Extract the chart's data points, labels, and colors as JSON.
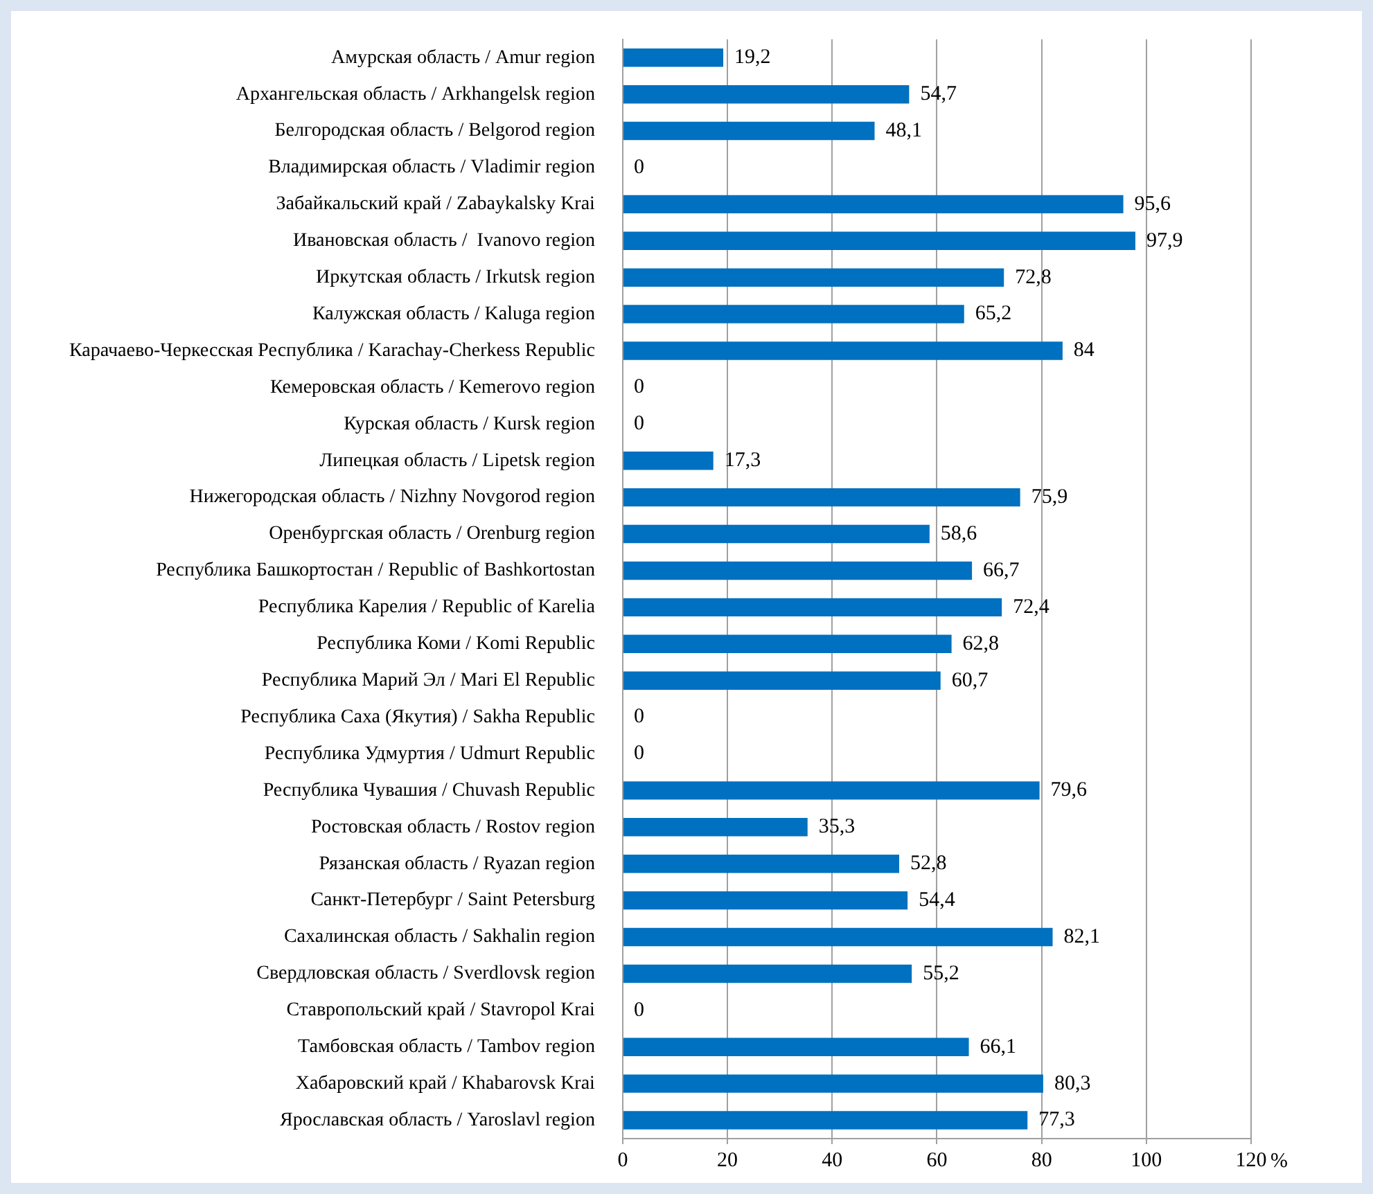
{
  "chart_data": {
    "type": "bar",
    "orientation": "horizontal",
    "xlabel": "%",
    "categories": [
      "Амурская область / Amur region",
      "Архангельская область / Arkhangelsk region",
      "Белгородская область / Belgorod region",
      "Владимирская область / Vladimir region",
      "Забайкальский край / Zabaykalsky Krai",
      "Ивановская область /  Ivanovo region",
      "Иркутская область / Irkutsk region",
      "Калужская область / Kaluga region",
      "Карачаево-Черкесская Республика / Karachay-Cherkess Republic",
      "Кемеровская область / Kemerovo region",
      "Курская область / Kursk region",
      "Липецкая область / Lipetsk region",
      "Нижегородская область / Nizhny Novgorod region",
      "Оренбургская область / Orenburg region",
      "Республика Башкортостан / Republic of Bashkortostan",
      "Республика Карелия / Republic of Karelia",
      "Республика Коми / Komi Republic",
      "Республика Марий Эл / Mari El Republic",
      "Республика Саха (Якутия) / Sakha Republic",
      "Республика Удмуртия / Udmurt Republic",
      "Республика Чувашия / Chuvash Republic",
      "Ростовская область / Rostov region",
      "Рязанская область / Ryazan region",
      "Санкт-Петербург / Saint Petersburg",
      "Сахалинская область / Sakhalin region",
      "Свердловская область / Sverdlovsk region",
      "Ставропольский край / Stavropol Krai",
      "Тамбовская область / Tambov region",
      "Хабаровский край / Khabarovsk Krai",
      "Ярославская область / Yaroslavl region"
    ],
    "values": [
      19.2,
      54.7,
      48.1,
      0,
      95.6,
      97.9,
      72.8,
      65.2,
      84,
      0,
      0,
      17.3,
      75.9,
      58.6,
      66.7,
      72.4,
      62.8,
      60.7,
      0,
      0,
      79.6,
      35.3,
      52.8,
      54.4,
      82.1,
      55.2,
      0,
      66.1,
      80.3,
      77.3
    ],
    "value_labels": [
      "19,2",
      "54,7",
      "48,1",
      "0",
      "95,6",
      "97,9",
      "72,8",
      "65,2",
      "84",
      "0",
      "0",
      "17,3",
      "75,9",
      "58,6",
      "66,7",
      "72,4",
      "62,8",
      "60,7",
      "0",
      "0",
      "79,6",
      "35,3",
      "52,8",
      "54,4",
      "82,1",
      "55,2",
      "0",
      "66,1",
      "80,3",
      "77,3"
    ],
    "color": "#0070c0",
    "xlim": [
      0,
      120
    ],
    "xticks": [
      0,
      20,
      40,
      60,
      80,
      100,
      120
    ],
    "grid": "x"
  }
}
